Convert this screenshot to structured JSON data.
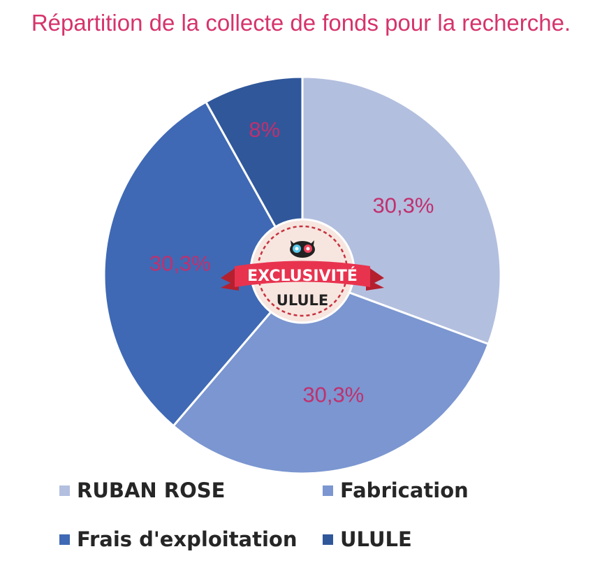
{
  "chart_data": {
    "type": "pie",
    "title": "Répartition de la collecte de fonds pour la recherche.",
    "slices": [
      {
        "name": "RUBAN ROSE",
        "value": 30.3,
        "label": "30,3%",
        "color": "#b3bfdf"
      },
      {
        "name": "Fabrication",
        "value": 30.3,
        "label": "30,3%",
        "color": "#7b96d0"
      },
      {
        "name": "Frais d'exploitation",
        "value": 30.3,
        "label": "30,3%",
        "color": "#3f69b4"
      },
      {
        "name": "ULULE",
        "value": 8,
        "label": "8%",
        "color": "#30579a"
      }
    ],
    "start_angle_deg": 0,
    "direction": "clockwise",
    "legend_position": "bottom"
  },
  "badge": {
    "ribbon_text": "EXCLUSIVITÉ",
    "brand_text": "ULULE",
    "ribbon_color": "#e8334f",
    "seal_color": "#f7e6e0"
  }
}
